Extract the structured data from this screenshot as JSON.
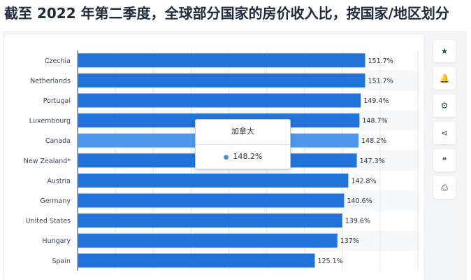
{
  "page": {
    "title": "截至 2022 年第二季度，全球部分国家的房价收入比，按国家/地区划分"
  },
  "toolbar": {
    "items": [
      {
        "name": "star-icon",
        "glyph": "★"
      },
      {
        "name": "bell-icon",
        "glyph": "🔔"
      },
      {
        "name": "gear-icon",
        "glyph": "⚙"
      },
      {
        "name": "share-icon",
        "glyph": "⋖"
      },
      {
        "name": "quote-icon",
        "glyph": "❝"
      },
      {
        "name": "print-icon",
        "glyph": "⎙"
      }
    ]
  },
  "tooltip": {
    "title": "加拿大",
    "value": "148.2%"
  },
  "colors": {
    "bar": "#2173d9",
    "bar_highlight": "#4d97ef",
    "grid": "#e3e6ea"
  },
  "chart_data": {
    "type": "bar",
    "orientation": "horizontal",
    "categories": [
      "Czechia",
      "Netherlands",
      "Portugal",
      "Luxembourg",
      "Canada",
      "New Zealand*",
      "Austria",
      "Germany",
      "United States",
      "Hungary",
      "Spain"
    ],
    "values": [
      151.7,
      151.7,
      149.4,
      148.7,
      148.2,
      147.3,
      142.8,
      140.6,
      139.6,
      137,
      125.1
    ],
    "value_labels": [
      "151.7%",
      "151.7%",
      "149.4%",
      "148.7%",
      "148.2%",
      "147.3%",
      "142.8%",
      "140.6%",
      "139.6%",
      "137%",
      "125.1%"
    ],
    "highlighted_category": "Canada",
    "xlim": [
      0,
      160
    ],
    "grid": true,
    "xlabel": "",
    "ylabel": ""
  }
}
